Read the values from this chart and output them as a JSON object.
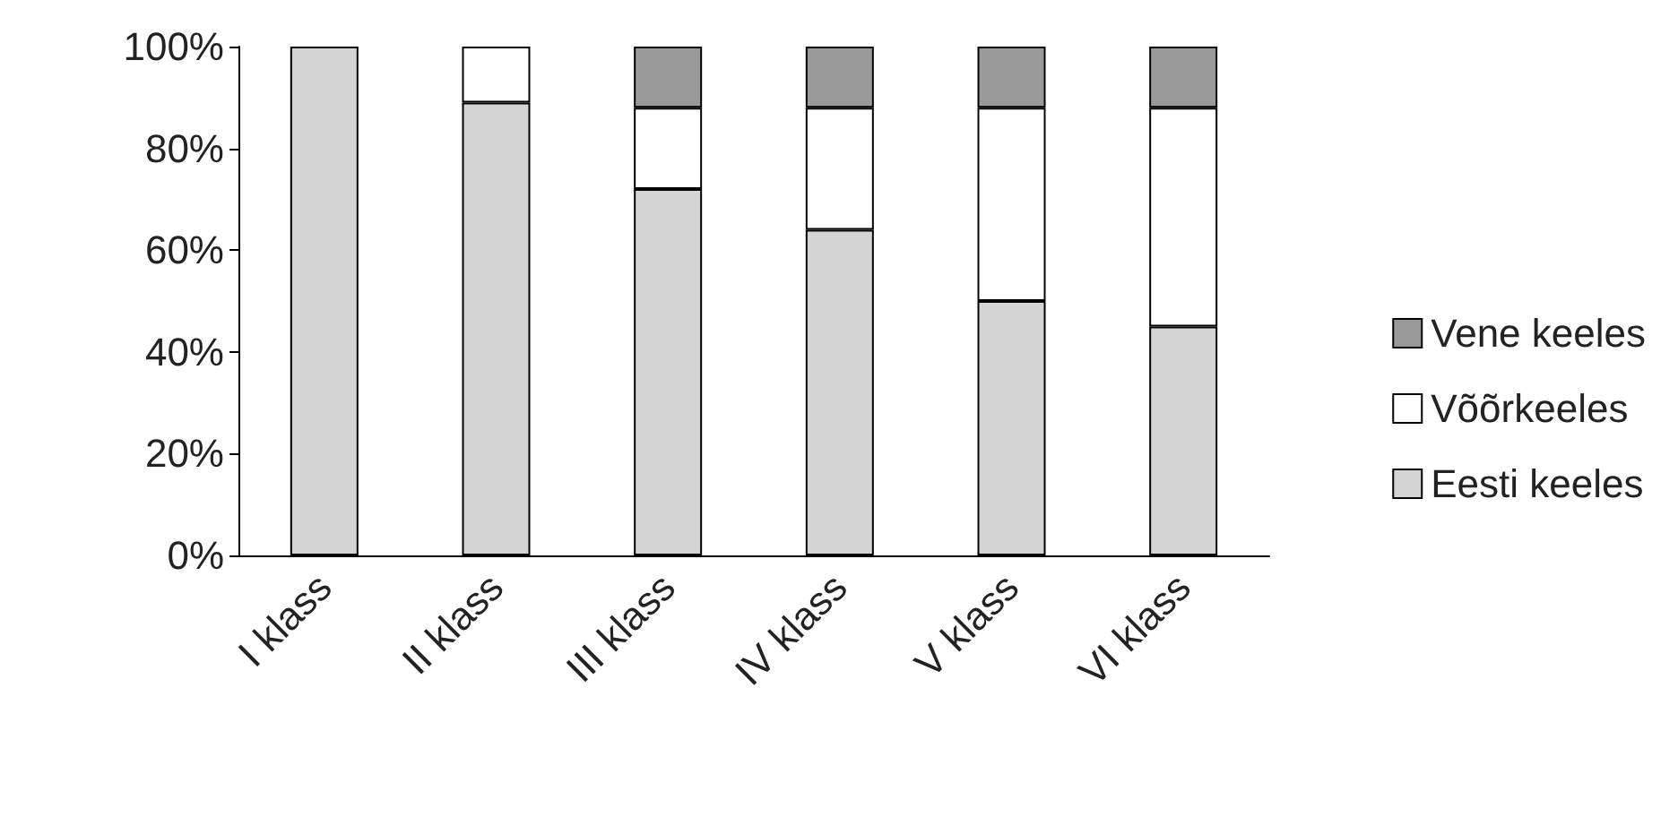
{
  "chart_data": {
    "type": "bar",
    "stacked": true,
    "categories": [
      "I klass",
      "II klass",
      "III klass",
      "IV klass",
      "V klass",
      "VI klass"
    ],
    "series": [
      {
        "name": "Eesti keeles",
        "color": "#d4d4d4",
        "values": [
          100,
          89,
          72,
          64,
          50,
          45
        ]
      },
      {
        "name": "Võõrkeeles",
        "color": "#ffffff",
        "values": [
          0,
          11,
          16,
          24,
          38,
          43
        ]
      },
      {
        "name": "Vene keeles",
        "color": "#9a9a9a",
        "values": [
          0,
          0,
          12,
          12,
          12,
          12
        ]
      }
    ],
    "ylim": [
      0,
      100
    ],
    "yticks": [
      {
        "value": 0,
        "label": "0%"
      },
      {
        "value": 20,
        "label": "20%"
      },
      {
        "value": 40,
        "label": "40%"
      },
      {
        "value": 60,
        "label": "60%"
      },
      {
        "value": 80,
        "label": "80%"
      },
      {
        "value": 100,
        "label": "100%"
      }
    ],
    "grid": false,
    "legend": "right"
  }
}
